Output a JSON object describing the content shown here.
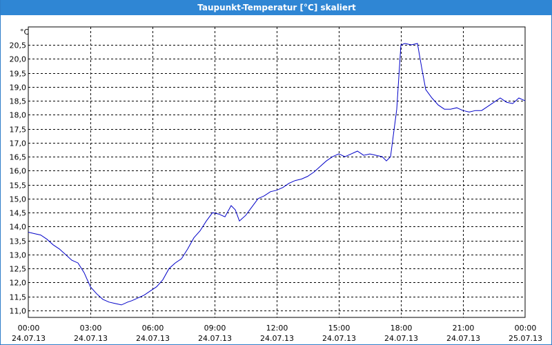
{
  "window": {
    "title": "Taupunkt-Temperatur [°C] skaliert"
  },
  "chart_data": {
    "type": "line",
    "title": "Taupunkt-Temperatur [°C] skaliert",
    "unit_label": "°C",
    "ylim": [
      10.8,
      21.0
    ],
    "yticks": [
      "20,5",
      "20,0",
      "19,5",
      "19,0",
      "18,5",
      "18,0",
      "17,5",
      "17,0",
      "16,5",
      "16,0",
      "15,5",
      "15,0",
      "14,5",
      "14,0",
      "13,5",
      "13,0",
      "12,5",
      "12,0",
      "11,5",
      "11,0"
    ],
    "ytick_values": [
      20.5,
      20.0,
      19.5,
      19.0,
      18.5,
      18.0,
      17.5,
      17.0,
      16.5,
      16.0,
      15.5,
      15.0,
      14.5,
      14.0,
      13.5,
      13.0,
      12.5,
      12.0,
      11.5,
      11.0
    ],
    "xlim_hours": [
      0,
      24
    ],
    "xticks": [
      {
        "time": "00:00",
        "date": "24.07.13"
      },
      {
        "time": "03:00",
        "date": "24.07.13"
      },
      {
        "time": "06:00",
        "date": "24.07.13"
      },
      {
        "time": "09:00",
        "date": "24.07.13"
      },
      {
        "time": "12:00",
        "date": "24.07.13"
      },
      {
        "time": "15:00",
        "date": "24.07.13"
      },
      {
        "time": "18:00",
        "date": "24.07.13"
      },
      {
        "time": "21:00",
        "date": "24.07.13"
      },
      {
        "time": "00:00",
        "date": "25.07.13"
      }
    ],
    "grid": true,
    "line_color": "#0000c8",
    "series": [
      {
        "x": [
          0.0,
          0.3,
          0.6,
          0.9,
          1.2,
          1.5,
          1.8,
          2.1,
          2.4,
          2.7,
          3.0,
          3.3,
          3.6,
          3.9,
          4.2,
          4.5,
          4.8,
          5.0,
          5.3,
          5.6,
          5.9,
          6.2,
          6.5,
          6.8,
          7.1,
          7.4,
          7.7,
          8.0,
          8.3,
          8.6,
          8.9,
          9.2,
          9.5,
          9.8,
          10.0,
          10.2,
          10.5,
          10.8,
          11.1,
          11.4,
          11.7,
          12.0,
          12.3,
          12.6,
          12.9,
          13.2,
          13.5,
          13.8,
          14.1,
          14.4,
          14.7,
          15.0,
          15.3,
          15.6,
          15.9,
          16.2,
          16.5,
          16.8,
          17.1,
          17.3,
          17.5,
          17.8,
          18.0,
          18.2,
          18.5,
          18.8,
          19.0,
          19.2,
          19.5,
          19.8,
          20.1,
          20.4,
          20.7,
          21.0,
          21.3,
          21.6,
          21.9,
          22.2,
          22.5,
          22.8,
          23.1,
          23.4,
          23.7,
          24.0
        ],
        "y": [
          13.8,
          13.75,
          13.7,
          13.55,
          13.35,
          13.2,
          13.0,
          12.8,
          12.7,
          12.35,
          11.85,
          11.6,
          11.4,
          11.3,
          11.25,
          11.2,
          11.3,
          11.35,
          11.45,
          11.55,
          11.7,
          11.85,
          12.1,
          12.5,
          12.7,
          12.85,
          13.2,
          13.6,
          13.85,
          14.2,
          14.5,
          14.45,
          14.35,
          14.75,
          14.6,
          14.2,
          14.4,
          14.7,
          15.0,
          15.1,
          15.25,
          15.3,
          15.4,
          15.55,
          15.65,
          15.7,
          15.8,
          15.95,
          16.15,
          16.35,
          16.5,
          16.6,
          16.5,
          16.6,
          16.7,
          16.55,
          16.6,
          16.55,
          16.5,
          16.35,
          16.5,
          18.2,
          20.5,
          20.55,
          20.5,
          20.55,
          19.7,
          18.9,
          18.6,
          18.35,
          18.2,
          18.2,
          18.25,
          18.15,
          18.1,
          18.15,
          18.15,
          18.3,
          18.45,
          18.6,
          18.45,
          18.4,
          18.6,
          18.5
        ]
      }
    ]
  }
}
